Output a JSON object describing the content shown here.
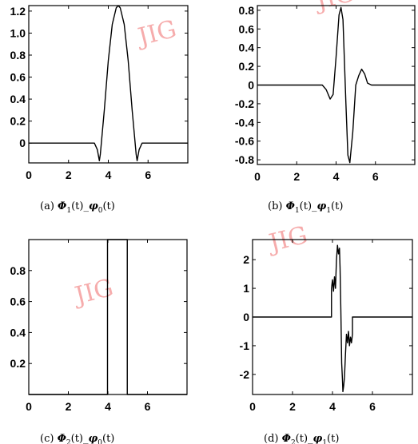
{
  "watermark": "JIG",
  "colors": {
    "ink": "#000000",
    "watermark": "#ef6a6a"
  },
  "chart_data": [
    {
      "id": "a",
      "type": "line",
      "caption": {
        "letter": "(a)",
        "left_sym": "Φ",
        "left_sub": "1",
        "right_sym": "φ",
        "right_sub": "0",
        "arg": "(t)",
        "joiner": "_"
      },
      "xlim": [
        0,
        8
      ],
      "ylim": [
        -0.18,
        1.25
      ],
      "xticks": [
        0,
        2,
        4,
        6
      ],
      "yticks": [
        0,
        0.2,
        0.4,
        0.6,
        0.8,
        1.0,
        1.2
      ],
      "ytick_labels": [
        "0",
        "0.2",
        "0.4",
        "0.6",
        "0.8",
        "1.0",
        "1.2"
      ],
      "series": [
        {
          "x": [
            0,
            3.3,
            3.45,
            3.55,
            3.6,
            3.8,
            4.0,
            4.2,
            4.4,
            4.5,
            4.6,
            4.8,
            5.0,
            5.2,
            5.4,
            5.45,
            5.55,
            5.7,
            8
          ],
          "y": [
            0,
            0,
            -0.06,
            -0.16,
            -0.1,
            0.3,
            0.75,
            1.08,
            1.23,
            1.25,
            1.23,
            1.08,
            0.75,
            0.3,
            -0.1,
            -0.16,
            -0.06,
            0,
            0
          ]
        }
      ]
    },
    {
      "id": "b",
      "type": "line",
      "caption": {
        "letter": "(b)",
        "left_sym": "Φ",
        "left_sub": "1",
        "right_sym": "φ",
        "right_sub": "1",
        "arg": "(t)",
        "joiner": "_"
      },
      "xlim": [
        0,
        8
      ],
      "ylim": [
        -0.85,
        0.85
      ],
      "xticks": [
        0,
        2,
        4,
        6
      ],
      "yticks": [
        -0.8,
        -0.6,
        -0.4,
        -0.2,
        0,
        0.2,
        0.4,
        0.6,
        0.8
      ],
      "ytick_labels": [
        "-0.8",
        "-0.6",
        "-0.4",
        "-0.2",
        "0",
        "0.2",
        "0.4",
        "0.6",
        "0.8"
      ],
      "series": [
        {
          "x": [
            0,
            3.3,
            3.5,
            3.7,
            3.85,
            4.0,
            4.15,
            4.25,
            4.35,
            4.5,
            4.6,
            4.7,
            4.85,
            5.0,
            5.15,
            5.3,
            5.45,
            5.6,
            5.8,
            8
          ],
          "y": [
            0,
            0,
            -0.05,
            -0.15,
            -0.1,
            0.3,
            0.75,
            0.83,
            0.7,
            -0.2,
            -0.75,
            -0.83,
            -0.5,
            0,
            0.1,
            0.17,
            0.12,
            0.02,
            0,
            0
          ]
        }
      ]
    },
    {
      "id": "c",
      "type": "line",
      "caption": {
        "letter": "(c)",
        "left_sym": "Φ",
        "left_sub": "2",
        "right_sym": "φ",
        "right_sub": "0",
        "arg": "(t)",
        "joiner": "_"
      },
      "xlim": [
        0,
        8
      ],
      "ylim": [
        0,
        1.0
      ],
      "xticks": [
        0,
        2,
        4,
        6
      ],
      "yticks": [
        0.2,
        0.4,
        0.6,
        0.8
      ],
      "ytick_labels": [
        "0.2",
        "0.4",
        "0.6",
        "0.8"
      ],
      "series": [
        {
          "x": [
            0,
            3.98,
            3.98,
            4.02,
            4.98,
            4.98,
            8
          ],
          "y": [
            0,
            0,
            1.0,
            1.0,
            1.0,
            0,
            0
          ]
        }
      ]
    },
    {
      "id": "d",
      "type": "line",
      "caption": {
        "letter": "(d)",
        "left_sym": "Φ",
        "left_sub": "2",
        "right_sym": "φ",
        "right_sub": "1",
        "arg": "(t)",
        "joiner": "_"
      },
      "xlim": [
        0,
        8
      ],
      "ylim": [
        -2.7,
        2.7
      ],
      "xticks": [
        0,
        2,
        4,
        6
      ],
      "yticks": [
        -2,
        -1,
        0,
        1,
        2
      ],
      "ytick_labels": [
        "-2",
        "-1",
        "0",
        "1",
        "2"
      ],
      "series": [
        {
          "x": [
            0,
            3.95,
            3.95,
            4.0,
            4.05,
            4.1,
            4.15,
            4.2,
            4.25,
            4.3,
            4.35,
            4.38,
            4.42,
            4.46,
            4.5,
            4.52,
            4.56,
            4.6,
            4.65,
            4.7,
            4.75,
            4.8,
            4.85,
            4.9,
            4.95,
            5.0,
            5.0,
            8
          ],
          "y": [
            0,
            0,
            1.0,
            1.3,
            0.9,
            1.4,
            1.0,
            2.0,
            2.5,
            2.2,
            2.4,
            1.7,
            0.2,
            -1.6,
            -2.2,
            -2.6,
            -2.4,
            -2.1,
            -1.3,
            -0.6,
            -0.9,
            -0.5,
            -1.0,
            -0.7,
            -0.9,
            -0.6,
            0,
            0
          ]
        }
      ]
    }
  ]
}
